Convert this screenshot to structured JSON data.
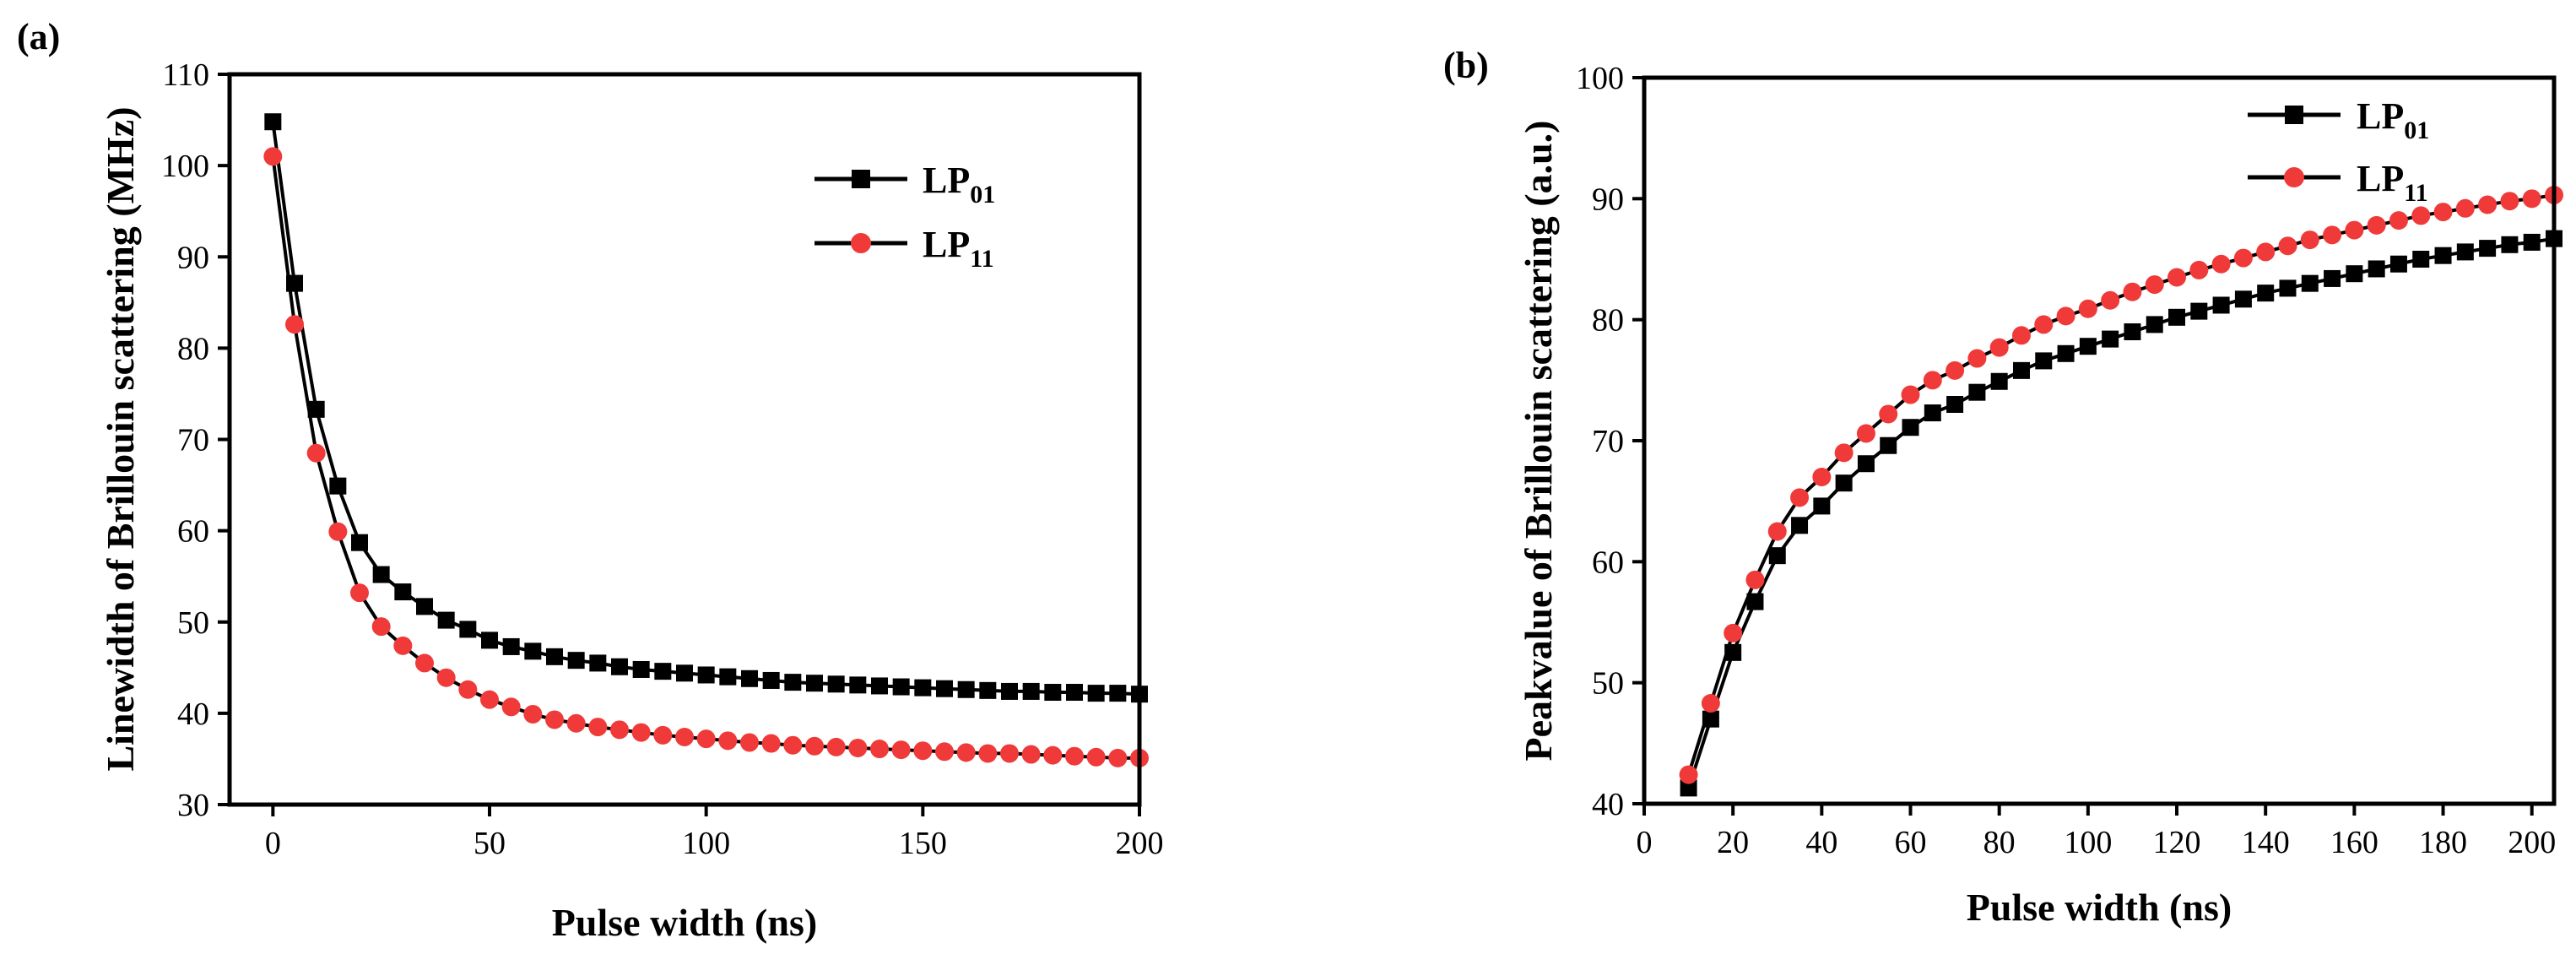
{
  "figure": {
    "colors": {
      "lp01": "#000000",
      "lp11": "#f03a3a",
      "axis": "#000000"
    }
  },
  "chart_data": [
    {
      "type": "line",
      "panel_label": "(a)",
      "title": "",
      "xlabel": "Pulse width (ns)",
      "ylabel": "Linewidth of Brillouin scattering (MHz)",
      "xlim": [
        -10,
        200
      ],
      "ylim": [
        30,
        110
      ],
      "xticks": [
        0,
        50,
        100,
        150,
        200
      ],
      "yticks": [
        30,
        40,
        50,
        60,
        70,
        80,
        90,
        100,
        110
      ],
      "grid": false,
      "legend_position": "top-right",
      "series": [
        {
          "name": "LP01",
          "name_base": "LP",
          "name_sub": "01",
          "color": "#000000",
          "marker": "square",
          "x": [
            0,
            5,
            10,
            15,
            20,
            25,
            30,
            35,
            40,
            45,
            50,
            55,
            60,
            65,
            70,
            75,
            80,
            85,
            90,
            95,
            100,
            105,
            110,
            115,
            120,
            125,
            130,
            135,
            140,
            145,
            150,
            155,
            160,
            165,
            170,
            175,
            180,
            185,
            190,
            195,
            200
          ],
          "y": [
            104.8,
            87.1,
            73.3,
            64.9,
            58.7,
            55.2,
            53.3,
            51.7,
            50.2,
            49.2,
            48.0,
            47.3,
            46.8,
            46.2,
            45.8,
            45.5,
            45.1,
            44.8,
            44.6,
            44.4,
            44.2,
            44.0,
            43.8,
            43.6,
            43.4,
            43.3,
            43.2,
            43.1,
            43.0,
            42.9,
            42.8,
            42.7,
            42.6,
            42.5,
            42.4,
            42.4,
            42.3,
            42.3,
            42.2,
            42.2,
            42.1
          ]
        },
        {
          "name": "LP11",
          "name_base": "LP",
          "name_sub": "11",
          "color": "#f03a3a",
          "marker": "circle",
          "x": [
            0,
            5,
            10,
            15,
            20,
            25,
            30,
            35,
            40,
            45,
            50,
            55,
            60,
            65,
            70,
            75,
            80,
            85,
            90,
            95,
            100,
            105,
            110,
            115,
            120,
            125,
            130,
            135,
            140,
            145,
            150,
            155,
            160,
            165,
            170,
            175,
            180,
            185,
            190,
            195,
            200
          ],
          "y": [
            101.0,
            82.6,
            68.5,
            59.9,
            53.2,
            49.5,
            47.4,
            45.5,
            43.9,
            42.6,
            41.5,
            40.7,
            39.9,
            39.3,
            38.9,
            38.5,
            38.2,
            37.9,
            37.6,
            37.4,
            37.2,
            37.0,
            36.8,
            36.7,
            36.5,
            36.4,
            36.3,
            36.2,
            36.1,
            36.0,
            35.9,
            35.8,
            35.7,
            35.6,
            35.6,
            35.5,
            35.4,
            35.3,
            35.2,
            35.1,
            35.1
          ]
        }
      ]
    },
    {
      "type": "line",
      "panel_label": "(b)",
      "title": "",
      "xlabel": "Pulse width (ns)",
      "ylabel": "Peakvalue of Brillouin scattering (a.u.)",
      "xlim": [
        0,
        205
      ],
      "ylim": [
        40,
        100
      ],
      "xticks": [
        0,
        20,
        40,
        60,
        80,
        100,
        120,
        140,
        160,
        180,
        200
      ],
      "yticks": [
        40,
        50,
        60,
        70,
        80,
        90,
        100
      ],
      "grid": false,
      "legend_position": "top-right",
      "series": [
        {
          "name": "LP01",
          "name_base": "LP",
          "name_sub": "01",
          "color": "#000000",
          "marker": "square",
          "x": [
            10,
            15,
            20,
            25,
            30,
            35,
            40,
            45,
            50,
            55,
            60,
            65,
            70,
            75,
            80,
            85,
            90,
            95,
            100,
            105,
            110,
            115,
            120,
            125,
            130,
            135,
            140,
            145,
            150,
            155,
            160,
            165,
            170,
            175,
            180,
            185,
            190,
            195,
            200,
            205
          ],
          "y": [
            41.3,
            47.0,
            52.5,
            56.7,
            60.5,
            63.0,
            64.6,
            66.5,
            68.1,
            69.6,
            71.1,
            72.3,
            73.0,
            74.0,
            74.9,
            75.8,
            76.6,
            77.2,
            77.8,
            78.4,
            79.0,
            79.6,
            80.2,
            80.7,
            81.2,
            81.7,
            82.2,
            82.6,
            83.0,
            83.4,
            83.8,
            84.2,
            84.6,
            85.0,
            85.3,
            85.6,
            85.9,
            86.2,
            86.4,
            86.7
          ]
        },
        {
          "name": "LP11",
          "name_base": "LP",
          "name_sub": "11",
          "color": "#f03a3a",
          "marker": "circle",
          "x": [
            10,
            15,
            20,
            25,
            30,
            35,
            40,
            45,
            50,
            55,
            60,
            65,
            70,
            75,
            80,
            85,
            90,
            95,
            100,
            105,
            110,
            115,
            120,
            125,
            130,
            135,
            140,
            145,
            150,
            155,
            160,
            165,
            170,
            175,
            180,
            185,
            190,
            195,
            200,
            205
          ],
          "y": [
            42.4,
            48.3,
            54.1,
            58.5,
            62.5,
            65.3,
            67.0,
            69.0,
            70.6,
            72.2,
            73.8,
            75.0,
            75.8,
            76.8,
            77.7,
            78.7,
            79.6,
            80.3,
            80.9,
            81.6,
            82.3,
            82.9,
            83.5,
            84.1,
            84.6,
            85.1,
            85.6,
            86.1,
            86.6,
            87.0,
            87.4,
            87.8,
            88.2,
            88.6,
            88.9,
            89.2,
            89.5,
            89.8,
            90.0,
            90.3
          ]
        }
      ]
    }
  ]
}
